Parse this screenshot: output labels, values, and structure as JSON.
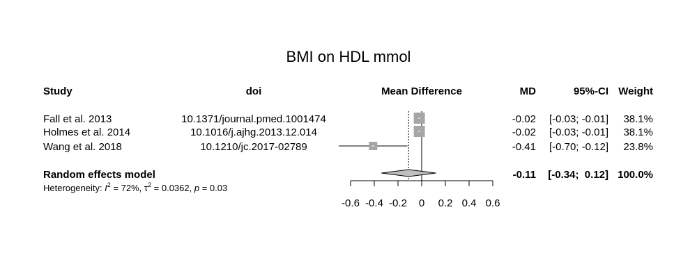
{
  "title": "BMI on HDL mmol",
  "headers": {
    "study": "Study",
    "doi": "doi",
    "effect": "Mean Difference",
    "md": "MD",
    "ci": "95%-CI",
    "weight": "Weight"
  },
  "summary_label": "Random effects model",
  "heterogeneity": {
    "label": "Heterogeneity: ",
    "i2_symbol": "I",
    "i2_sup": "2",
    "i2_value": " = 72%, ",
    "tau2_symbol": "τ",
    "tau2_sup": "2",
    "tau2_value": " = 0.0362, ",
    "p_symbol": "p",
    "p_value": " = 0.03"
  },
  "chart_data": {
    "type": "forest",
    "title": "BMI on HDL mmol",
    "xlabel": "Mean Difference",
    "xlim": [
      -0.6,
      0.6
    ],
    "xticks": [
      -0.6,
      -0.4,
      -0.2,
      0,
      0.2,
      0.4,
      0.6
    ],
    "xtick_labels": [
      "-0.6",
      "-0.4",
      "-0.2",
      "0",
      "0.2",
      "0.4",
      "0.6"
    ],
    "null_line": 0,
    "studies": [
      {
        "study": "Fall et al. 2013",
        "doi": "10.1371/journal.pmed.1001474",
        "md": -0.02,
        "lower": -0.03,
        "upper": -0.01,
        "md_text": "-0.02",
        "ci_text": "[-0.03; -0.01]",
        "weight_text": "38.1%"
      },
      {
        "study": "Holmes et al. 2014",
        "doi": "10.1016/j.ajhg.2013.12.014",
        "md": -0.02,
        "lower": -0.03,
        "upper": -0.01,
        "md_text": "-0.02",
        "ci_text": "[-0.03; -0.01]",
        "weight_text": "38.1%"
      },
      {
        "study": "Wang et al. 2018",
        "doi": "10.1210/jc.2017-02789",
        "md": -0.41,
        "lower": -0.7,
        "upper": -0.12,
        "md_text": "-0.41",
        "ci_text": "[-0.70; -0.12]",
        "weight_text": "23.8%"
      }
    ],
    "pooled": {
      "md": -0.11,
      "lower": -0.34,
      "upper": 0.12,
      "md_text": "-0.11",
      "ci_text": "[-0.34;  0.12]",
      "weight_text": "100.0%"
    },
    "colors": {
      "square": "#a6a6a6",
      "diamond": "#bfbfbf",
      "line": "#000000"
    }
  }
}
